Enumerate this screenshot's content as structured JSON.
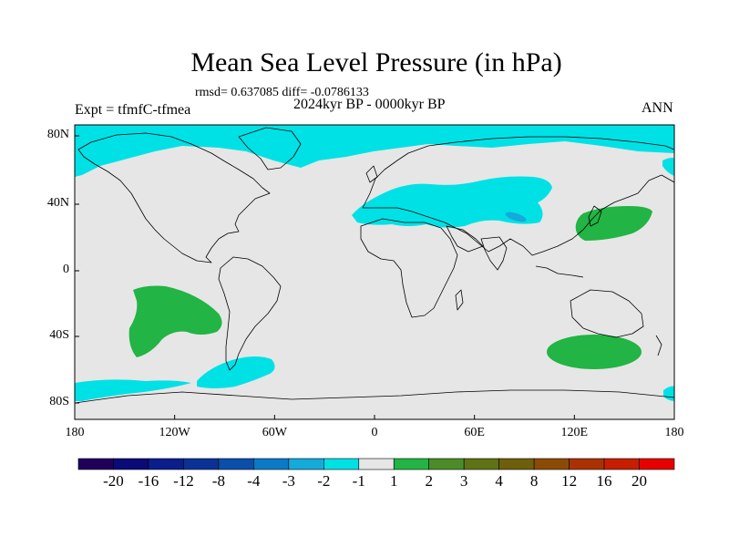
{
  "title": "Mean Sea Level Pressure (in hPa)",
  "stats": "rmsd= 0.637085 diff= -0.0786133",
  "period": "2024kyr BP - 0000kyr BP",
  "experiment": "Expt = tfmfC-tfmea",
  "season": "ANN",
  "lat_labels": [
    "80N",
    "40N",
    "0",
    "40S",
    "80S"
  ],
  "lon_labels": [
    "180",
    "120W",
    "60W",
    "0",
    "60E",
    "120E",
    "180"
  ],
  "colorbar": {
    "labels": [
      "-20",
      "-16",
      "-12",
      "-8",
      "-4",
      "-3",
      "-2",
      "-1",
      "1",
      "2",
      "3",
      "4",
      "8",
      "12",
      "16",
      "20"
    ],
    "colors": [
      "#20005a",
      "#0a0a78",
      "#0a1e8c",
      "#0a3296",
      "#0a50aa",
      "#0a7ac8",
      "#14aadc",
      "#00e1e6",
      "#e6e6e6",
      "#22b444",
      "#4b8c28",
      "#5f7314",
      "#6e5f0a",
      "#8c4b05",
      "#aa3200",
      "#c81e00",
      "#e60000"
    ]
  },
  "colors": {
    "neutral": "#e6e6e6",
    "light_blue": "#00e1e6",
    "mid_blue": "#14aadc",
    "green": "#22b444"
  }
}
